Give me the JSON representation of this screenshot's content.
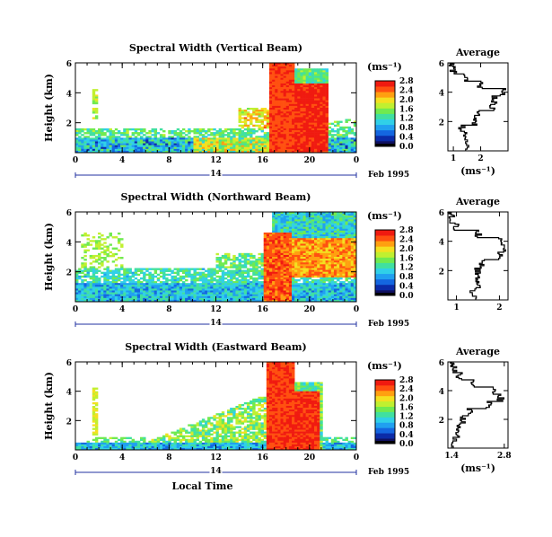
{
  "chart_data": [
    {
      "type": "heatmap",
      "title": "Spectral Width (Vertical Beam)",
      "ylabel": "Height (km)",
      "xticks": [
        "0",
        "4",
        "8",
        "12",
        "16",
        "20",
        "0"
      ],
      "yticks": [
        "2",
        "4",
        "6"
      ],
      "day_label": "14",
      "date_label": "Feb 1995",
      "colorbar": {
        "unit": "(ms⁻¹)",
        "ticks": [
          "0.0",
          "0.4",
          "0.8",
          "1.2",
          "1.6",
          "2.0",
          "2.4",
          "2.8"
        ]
      },
      "average": {
        "title": "Average",
        "xlabel": "(ms⁻¹)",
        "xticks": [
          "1",
          "2"
        ],
        "yticks": [
          "2",
          "4",
          "6"
        ],
        "xlim": [
          0.8,
          3.0
        ],
        "height_km": [
          0.5,
          1.0,
          1.5,
          2.0,
          2.5,
          3.0,
          3.5,
          4.0,
          4.5,
          5.0,
          5.5,
          6.0
        ],
        "width_ms": [
          1.5,
          1.5,
          1.3,
          1.8,
          1.9,
          2.4,
          2.5,
          2.8,
          2.0,
          1.4,
          1.0,
          0.9
        ]
      }
    },
    {
      "type": "heatmap",
      "title": "Spectral Width (Northward Beam)",
      "ylabel": "Height (km)",
      "xticks": [
        "0",
        "4",
        "8",
        "12",
        "16",
        "20",
        "0"
      ],
      "yticks": [
        "2",
        "4",
        "6"
      ],
      "day_label": "14",
      "date_label": "Feb 1995",
      "colorbar": {
        "unit": "(ms⁻¹)",
        "ticks": [
          "0.0",
          "0.4",
          "0.8",
          "1.2",
          "1.6",
          "2.0",
          "2.4",
          "2.8"
        ]
      },
      "average": {
        "title": "Average",
        "xlabel": "",
        "xticks": [
          "1",
          "2"
        ],
        "yticks": [
          "2",
          "4",
          "6"
        ],
        "xlim": [
          0.8,
          2.2
        ],
        "height_km": [
          0.5,
          1.0,
          1.5,
          2.0,
          2.5,
          3.0,
          3.5,
          4.0,
          4.5,
          5.0,
          5.5,
          6.0
        ],
        "width_ms": [
          1.4,
          1.5,
          1.5,
          1.5,
          1.6,
          2.0,
          2.1,
          2.0,
          1.5,
          1.0,
          0.9,
          0.85
        ]
      }
    },
    {
      "type": "heatmap",
      "title": "Spectral Width (Eastward Beam)",
      "ylabel": "Height (km)",
      "xlabel": "Local Time",
      "xticks": [
        "0",
        "4",
        "8",
        "12",
        "16",
        "20",
        "0"
      ],
      "yticks": [
        "2",
        "4",
        "6"
      ],
      "day_label": "14",
      "date_label": "Feb 1995",
      "colorbar": {
        "unit": "(ms⁻¹)",
        "ticks": [
          "0.0",
          "0.4",
          "0.8",
          "1.2",
          "1.6",
          "2.0",
          "2.4",
          "2.8"
        ]
      },
      "average": {
        "title": "Average",
        "xlabel": "(ms⁻¹)",
        "xticks": [
          "1.4",
          "2.8"
        ],
        "yticks": [
          "2",
          "4",
          "6"
        ],
        "xlim": [
          1.3,
          2.9
        ],
        "height_km": [
          0.5,
          1.0,
          1.5,
          2.0,
          2.5,
          3.0,
          3.5,
          4.0,
          4.5,
          5.0,
          5.5,
          6.0
        ],
        "width_ms": [
          1.45,
          1.55,
          1.6,
          1.7,
          1.9,
          2.4,
          2.7,
          2.5,
          2.0,
          1.6,
          1.45,
          1.4
        ]
      }
    }
  ],
  "colormap": [
    "#101060",
    "#0b2ba8",
    "#1466e0",
    "#20a0f0",
    "#30d0e8",
    "#40e0a0",
    "#70ea50",
    "#c0f030",
    "#f4e020",
    "#ffa010",
    "#ff5010",
    "#f01a10"
  ]
}
